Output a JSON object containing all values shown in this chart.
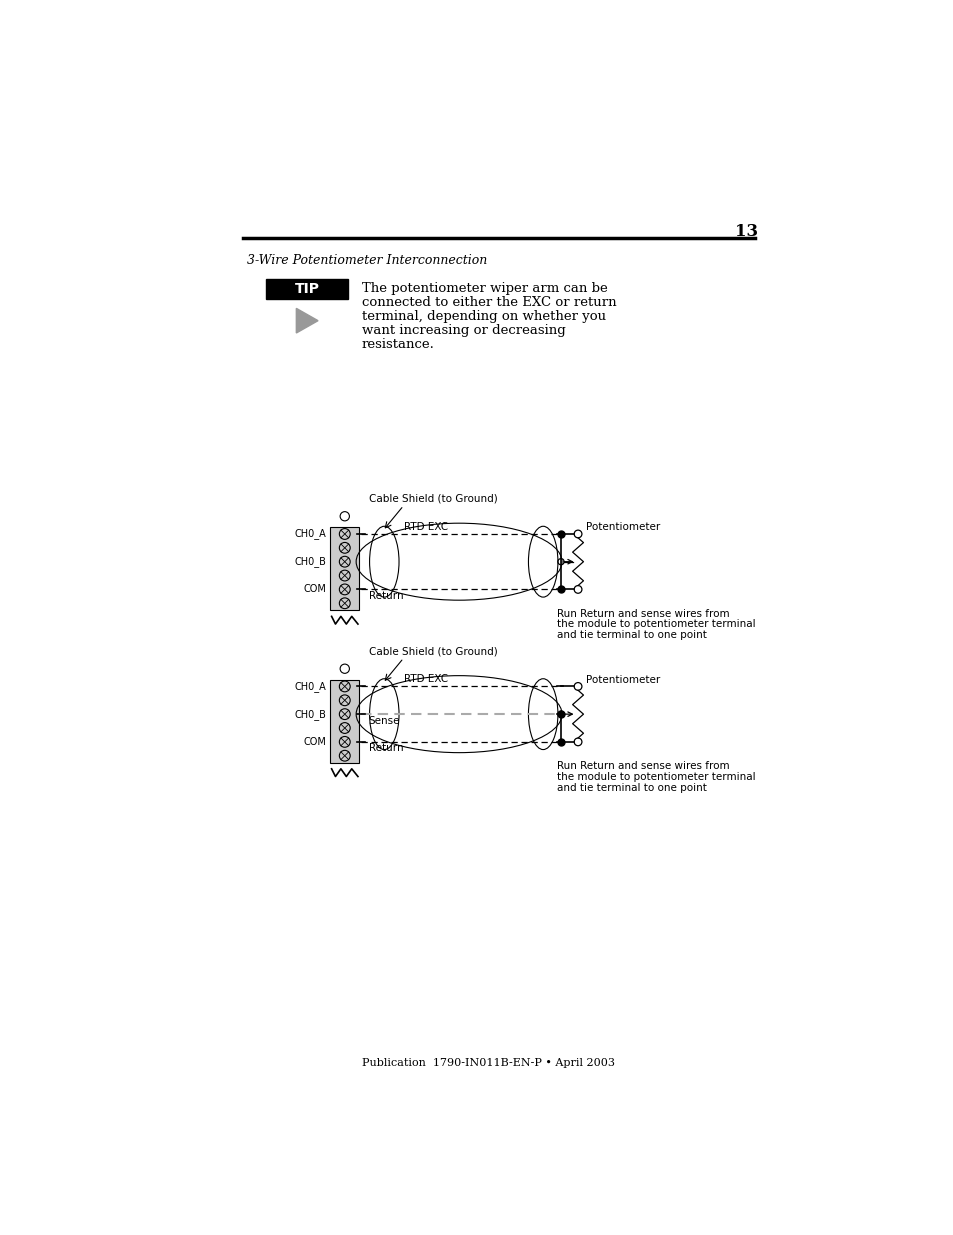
{
  "page_number": "13",
  "title": "3-Wire Potentiometer Interconnection",
  "tip_text": [
    "The potentiometer wiper arm can be",
    "connected to either the EXC or return",
    "terminal, depending on whether you",
    "want increasing or decreasing",
    "resistance."
  ],
  "footer": "Publication  1790-IN011B-EN-P • April 2003",
  "diagram1": {
    "wire_labels": [
      "RTD EXC",
      "Return"
    ],
    "cable_shield_label": "Cable Shield (to Ground)",
    "potentiometer_label": "Potentiometer",
    "note": [
      "Run Return and sense wires from",
      "the module to potentiometer terminal",
      "and tie terminal to one point"
    ]
  },
  "diagram2": {
    "wire_labels": [
      "RTD EXC",
      "Sense",
      "Return"
    ],
    "cable_shield_label": "Cable Shield (to Ground)",
    "potentiometer_label": "Potentiometer",
    "note": [
      "Run Return and sense wires from",
      "the module to potentiometer terminal",
      "and tie terminal to one point"
    ]
  },
  "bg": "#ffffff",
  "black": "#000000",
  "gray": "#aaaaaa"
}
